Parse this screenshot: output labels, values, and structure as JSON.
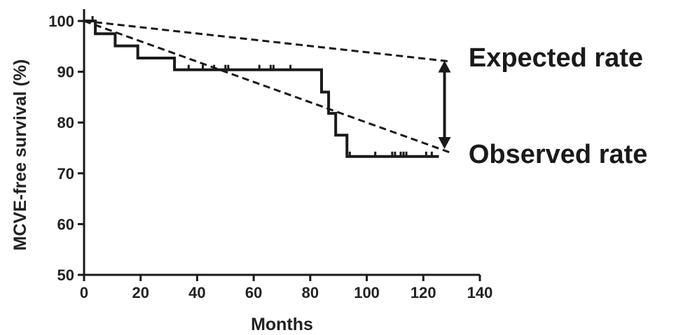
{
  "chart_data": {
    "type": "line",
    "xlabel": "Months",
    "ylabel": "MCVE-free survival (%)",
    "xlim": [
      0,
      140
    ],
    "ylim": [
      50,
      100
    ],
    "xticks": [
      0,
      20,
      40,
      60,
      80,
      100,
      120,
      140
    ],
    "yticks": [
      50,
      60,
      70,
      80,
      90,
      100
    ],
    "grid": false,
    "series": [
      {
        "style": "step",
        "color": "#1a1a1a",
        "x": [
          0,
          4,
          4,
          11,
          11,
          19,
          19,
          32,
          32,
          84,
          84,
          86.5,
          86.5,
          89,
          89,
          93,
          93,
          125.5
        ],
        "y": [
          100,
          100,
          97.5,
          97.5,
          95.1,
          95.1,
          92.7,
          92.7,
          90.4,
          90.4,
          86,
          86,
          81.8,
          81.8,
          77.5,
          77.5,
          73.3,
          73.3
        ],
        "censor_x": [
          3,
          37,
          42,
          46,
          50,
          51,
          62,
          66,
          67,
          73,
          94,
          103,
          109,
          110,
          112,
          113,
          114,
          121,
          123
        ]
      },
      {
        "style": "dashed",
        "color": "#1a1a1a",
        "x": [
          0,
          130
        ],
        "y": [
          100,
          92
        ]
      },
      {
        "style": "dashed",
        "color": "#1a1a1a",
        "x": [
          0,
          130
        ],
        "y": [
          100,
          74
        ]
      }
    ],
    "annotations": [
      {
        "text": "Expected rate",
        "x": 136,
        "y": 93
      },
      {
        "text": "Observed rate",
        "x": 136,
        "y": 74
      }
    ],
    "arrow": {
      "x": 127.5,
      "y_from": 92.2,
      "y_to": 74.8
    }
  }
}
